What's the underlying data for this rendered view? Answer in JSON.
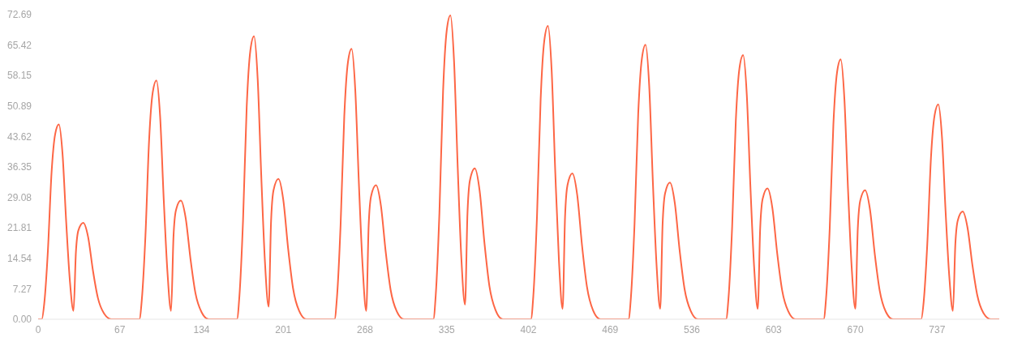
{
  "chart_data": {
    "type": "line",
    "x": [
      0,
      3,
      5,
      8,
      11,
      14,
      17,
      20,
      23,
      26,
      29,
      31,
      33,
      37,
      41,
      45,
      49,
      54,
      60,
      83,
      85,
      88,
      91,
      94,
      97,
      100,
      103,
      106,
      109,
      111,
      113,
      117,
      121,
      125,
      129,
      134,
      140,
      163,
      165,
      168,
      171,
      174,
      177,
      180,
      183,
      186,
      189,
      191,
      193,
      197,
      201,
      205,
      209,
      214,
      220,
      243,
      245,
      248,
      251,
      254,
      257,
      260,
      263,
      266,
      269,
      271,
      273,
      277,
      281,
      285,
      289,
      294,
      300,
      324,
      326,
      329,
      332,
      335,
      338,
      341,
      344,
      347,
      350,
      352,
      354,
      358,
      362,
      366,
      370,
      375,
      381,
      404,
      406,
      409,
      412,
      415,
      418,
      421,
      424,
      427,
      430,
      432,
      434,
      438,
      442,
      446,
      450,
      455,
      461,
      484,
      486,
      489,
      492,
      495,
      498,
      501,
      504,
      507,
      510,
      512,
      514,
      518,
      522,
      526,
      530,
      535,
      541,
      564,
      566,
      569,
      572,
      575,
      578,
      581,
      584,
      587,
      590,
      592,
      594,
      598,
      602,
      606,
      610,
      615,
      621,
      644,
      646,
      649,
      652,
      655,
      658,
      661,
      664,
      667,
      670,
      672,
      674,
      678,
      682,
      686,
      690,
      695,
      701,
      724,
      726,
      729,
      732,
      735,
      738,
      741,
      744,
      747,
      750,
      752,
      754,
      758,
      762,
      766,
      770,
      775,
      781,
      788
    ],
    "series": [
      {
        "color": "#fd6645",
        "values": [
          0,
          0,
          3.7,
          16.3,
          34.9,
          44.2,
          46.5,
          39.5,
          23.3,
          9.3,
          2,
          16.1,
          21.2,
          23,
          19.6,
          11.5,
          5.1,
          1.4,
          0,
          0,
          4.6,
          20,
          42.8,
          54.2,
          57,
          48.5,
          28.5,
          11.4,
          2,
          19.8,
          26,
          28.3,
          24.1,
          14.2,
          6.2,
          1.7,
          0,
          0,
          5.4,
          23.6,
          50.6,
          64.1,
          67.5,
          57.4,
          33.8,
          13.5,
          3,
          23.5,
          30.8,
          33.5,
          28.5,
          16.8,
          7.4,
          2,
          0,
          0,
          5.2,
          22.6,
          48.4,
          61.3,
          64.5,
          54.8,
          32.3,
          12.9,
          2,
          22.4,
          29.4,
          32,
          27.2,
          16,
          7,
          1.9,
          0,
          0,
          5.8,
          25.4,
          54.4,
          68.9,
          72.5,
          61.6,
          36.3,
          14.5,
          3.5,
          25.2,
          33.1,
          36,
          30.6,
          18,
          7.9,
          2.2,
          0,
          0,
          5.6,
          24.5,
          52.5,
          66.5,
          70,
          59.5,
          35,
          14,
          2.5,
          24.4,
          32,
          34.8,
          29.6,
          17.4,
          7.7,
          2.1,
          0,
          0,
          5.2,
          22.9,
          49.1,
          62.2,
          65.5,
          55.7,
          32.8,
          13.1,
          2.5,
          22.8,
          30,
          32.6,
          27.7,
          16.3,
          7.2,
          2,
          0,
          0,
          5,
          22.1,
          47.3,
          59.9,
          63,
          53.6,
          31.5,
          12.6,
          2.5,
          21.8,
          28.7,
          31.2,
          26.5,
          15.6,
          6.9,
          1.9,
          0,
          0,
          5,
          21.7,
          46.5,
          58.9,
          62,
          52.7,
          31,
          12.4,
          2.5,
          21.6,
          28.3,
          30.8,
          26.2,
          15.4,
          6.8,
          1.8,
          0,
          0,
          4.1,
          18,
          38.5,
          48.7,
          51.3,
          43.6,
          25.7,
          10.3,
          2,
          18,
          23.6,
          25.7,
          21.8,
          12.9,
          5.7,
          1.5,
          0,
          0
        ]
      }
    ],
    "xticks": [
      0,
      67,
      134,
      201,
      268,
      335,
      402,
      469,
      536,
      603,
      670,
      737
    ],
    "xlim": [
      0,
      788
    ],
    "ylim": [
      0,
      72.69
    ],
    "yticks": [
      {
        "value": 0,
        "label": "0.00"
      },
      7.27,
      14.54,
      21.81,
      29.08,
      36.35,
      43.62,
      50.89,
      58.15,
      65.42,
      72.69
    ]
  }
}
